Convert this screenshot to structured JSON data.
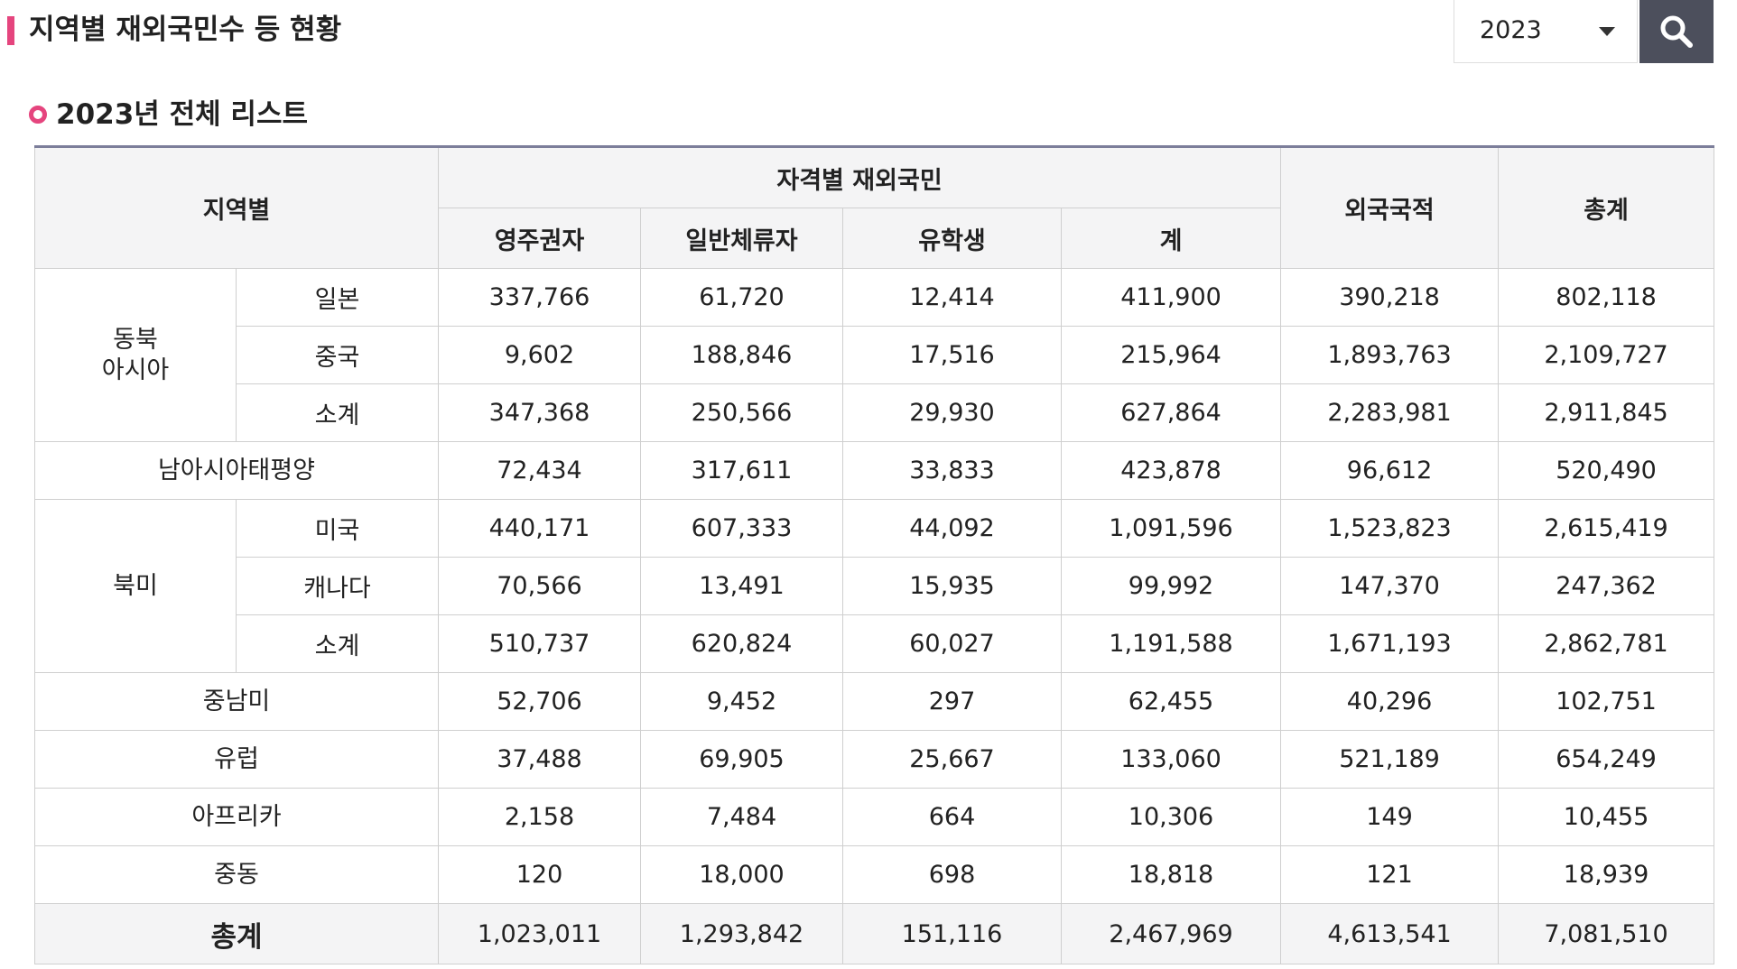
{
  "page_title": "지역별 재외국민수 등 현황",
  "year_select": {
    "selected": "2023"
  },
  "section_title": "2023년 전체 리스트",
  "table": {
    "headers": {
      "region": "지역별",
      "qualified": "자격별 재외국민",
      "sub": [
        "영주권자",
        "일반체류자",
        "유학생",
        "계"
      ],
      "foreign": "외국국적",
      "total": "총계"
    },
    "groups": [
      {
        "region_lines": [
          "동북",
          "아시아"
        ],
        "rows": [
          {
            "label": "일본",
            "values": [
              "337,766",
              "61,720",
              "12,414",
              "411,900",
              "390,218",
              "802,118"
            ]
          },
          {
            "label": "중국",
            "values": [
              "9,602",
              "188,846",
              "17,516",
              "215,964",
              "1,893,763",
              "2,109,727"
            ]
          },
          {
            "label": "소계",
            "values": [
              "347,368",
              "250,566",
              "29,930",
              "627,864",
              "2,283,981",
              "2,911,845"
            ]
          }
        ]
      },
      {
        "region_lines": [
          "남아시아태평양"
        ],
        "rows": [
          {
            "label": "",
            "values": [
              "72,434",
              "317,611",
              "33,833",
              "423,878",
              "96,612",
              "520,490"
            ]
          }
        ]
      },
      {
        "region_lines": [
          "북미"
        ],
        "rows": [
          {
            "label": "미국",
            "values": [
              "440,171",
              "607,333",
              "44,092",
              "1,091,596",
              "1,523,823",
              "2,615,419"
            ]
          },
          {
            "label": "캐나다",
            "values": [
              "70,566",
              "13,491",
              "15,935",
              "99,992",
              "147,370",
              "247,362"
            ]
          },
          {
            "label": "소계",
            "values": [
              "510,737",
              "620,824",
              "60,027",
              "1,191,588",
              "1,671,193",
              "2,862,781"
            ]
          }
        ]
      },
      {
        "region_lines": [
          "중남미"
        ],
        "rows": [
          {
            "label": "",
            "values": [
              "52,706",
              "9,452",
              "297",
              "62,455",
              "40,296",
              "102,751"
            ]
          }
        ]
      },
      {
        "region_lines": [
          "유럽"
        ],
        "rows": [
          {
            "label": "",
            "values": [
              "37,488",
              "69,905",
              "25,667",
              "133,060",
              "521,189",
              "654,249"
            ]
          }
        ]
      },
      {
        "region_lines": [
          "아프리카"
        ],
        "rows": [
          {
            "label": "",
            "values": [
              "2,158",
              "7,484",
              "664",
              "10,306",
              "149",
              "10,455"
            ]
          }
        ]
      },
      {
        "region_lines": [
          "중동"
        ],
        "rows": [
          {
            "label": "",
            "values": [
              "120",
              "18,000",
              "698",
              "18,818",
              "121",
              "18,939"
            ]
          }
        ]
      }
    ],
    "total": {
      "label": "총계",
      "values": [
        "1,023,011",
        "1,293,842",
        "151,116",
        "2,467,969",
        "4,613,541",
        "7,081,510"
      ]
    }
  },
  "icons": {
    "search": "search-icon",
    "dropdown": "chevron-down-icon",
    "bullet": "circle-bullet-icon"
  },
  "colors": {
    "accent": "#e5457e",
    "header_bg": "#f4f4f5",
    "button_bg": "#4c4f5c",
    "table_top_border": "#7c7e9a"
  }
}
